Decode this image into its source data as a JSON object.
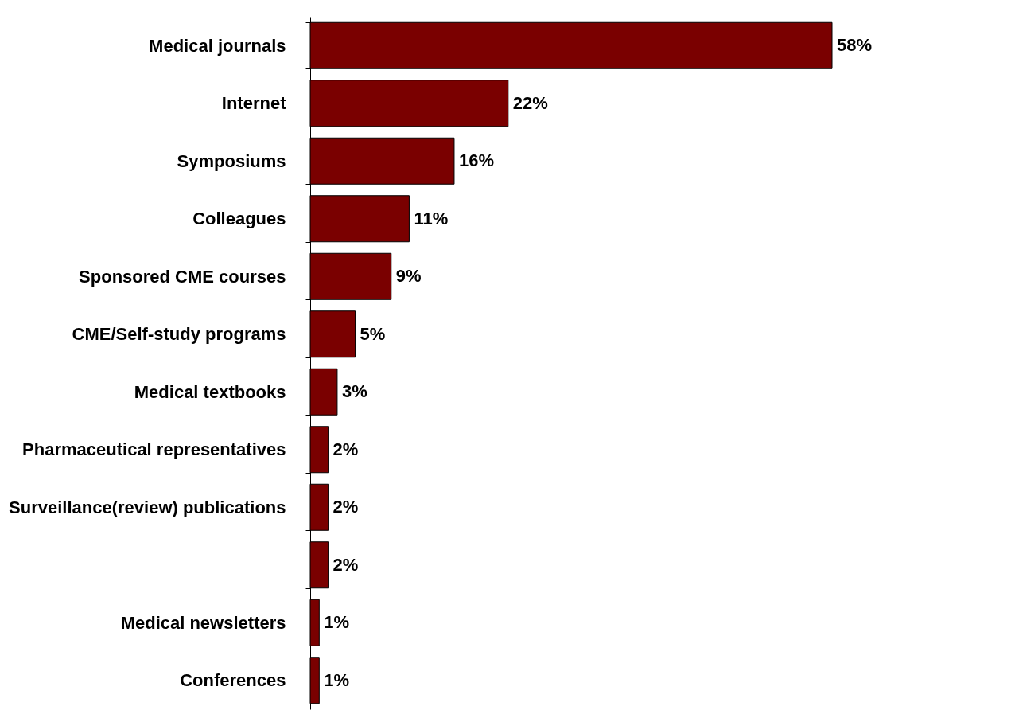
{
  "chart_data": {
    "type": "bar",
    "orientation": "horizontal",
    "categories": [
      "Medical journals",
      "Internet",
      "Symposiums",
      "Colleagues",
      "Sponsored CME courses",
      "CME/Self-study programs",
      "Medical textbooks",
      "Pharmaceutical representatives",
      "Surveillance(review) publications",
      null,
      "Medical newsletters",
      "Conferences"
    ],
    "values": [
      58,
      22,
      16,
      11,
      9,
      5,
      3,
      2,
      2,
      2,
      1,
      1
    ],
    "value_labels": [
      "58%",
      "22%",
      "16%",
      "11%",
      "9%",
      "5%",
      "3%",
      "2%",
      "2%",
      "2%",
      "1%",
      "1%"
    ],
    "color": "#7a0000"
  }
}
